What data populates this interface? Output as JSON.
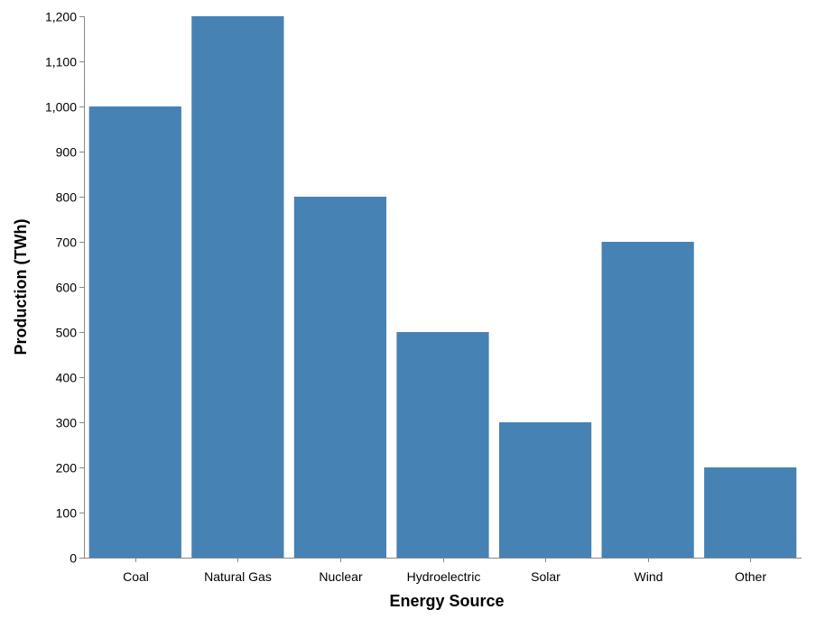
{
  "chart_data": {
    "type": "bar",
    "title": "",
    "categories": [
      "Coal",
      "Natural Gas",
      "Nuclear",
      "Hydroelectric",
      "Solar",
      "Wind",
      "Other"
    ],
    "values": [
      1000,
      1200,
      800,
      500,
      300,
      700,
      200
    ],
    "xlabel": "Energy Source",
    "ylabel": "Production (TWh)",
    "ylim": [
      0,
      1200
    ],
    "yticks": [
      0,
      100,
      200,
      300,
      400,
      500,
      600,
      700,
      800,
      900,
      1000,
      1100,
      1200
    ],
    "grid": false,
    "bar_color": "#4682b4"
  }
}
